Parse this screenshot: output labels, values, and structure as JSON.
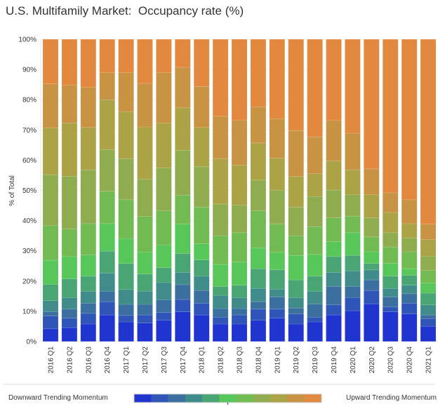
{
  "title": "U.S. Multifamily Market:  Occupancy rate (%)",
  "legend": {
    "left_label": "Downward Trending Momentum",
    "right_label": "Upward Trending Momentum"
  },
  "chart_data": {
    "type": "bar",
    "stacked": true,
    "normalized": true,
    "title": "U.S. Multifamily Market:  Occupancy rate (%)",
    "xlabel": "",
    "ylabel": "% of Total",
    "ylim": [
      0,
      100
    ],
    "yticks": [
      "0%",
      "10%",
      "20%",
      "30%",
      "40%",
      "50%",
      "60%",
      "70%",
      "80%",
      "90%",
      "100%"
    ],
    "grid": true,
    "legend_position": "bottom",
    "band_colors": [
      "#2035d0",
      "#2f55b8",
      "#3b6fa0",
      "#3f8c8a",
      "#4aa574",
      "#57c75a",
      "#72bb52",
      "#8fad4f",
      "#aca347",
      "#c89343",
      "#e3893f"
    ],
    "categories": [
      "2016 Q1",
      "2016 Q2",
      "2016 Q3",
      "2016 Q4",
      "2017 Q1",
      "2017 Q2",
      "2017 Q3",
      "2017 Q4",
      "2018 Q1",
      "2018 Q2",
      "2018 Q3",
      "2018 Q4",
      "2019 Q1",
      "2019 Q2",
      "2019 Q3",
      "2019 Q4",
      "2020 Q1",
      "2020 Q2",
      "2020 Q3",
      "2020 Q4",
      "2021 Q1"
    ],
    "cumulative_band_tops_pct": [
      [
        4.2,
        8.4,
        9.9,
        13.5,
        18.9,
        26.9,
        38.4,
        55.2,
        70.6,
        85.2,
        100
      ],
      [
        4.6,
        7.7,
        10.7,
        14.5,
        20.7,
        28.1,
        37.2,
        54.7,
        72.3,
        84.9,
        100
      ],
      [
        5.8,
        9.3,
        12.7,
        16.6,
        21.6,
        28.6,
        39.0,
        56.8,
        70.8,
        84.1,
        100
      ],
      [
        8.8,
        13.2,
        16.6,
        22.6,
        29.9,
        39.0,
        49.7,
        63.5,
        80.0,
        89.0,
        100
      ],
      [
        6.5,
        8.6,
        12.3,
        17.2,
        25.8,
        34.1,
        46.9,
        60.5,
        76.0,
        89.0,
        100
      ],
      [
        6.1,
        8.8,
        12.3,
        16.6,
        22.3,
        29.6,
        41.4,
        53.7,
        71.0,
        85.4,
        100
      ],
      [
        7.0,
        9.6,
        13.8,
        19.5,
        24.4,
        31.9,
        43.2,
        57.4,
        72.2,
        89.0,
        100
      ],
      [
        9.8,
        13.9,
        18.8,
        22.9,
        29.1,
        38.9,
        48.4,
        63.3,
        77.3,
        90.7,
        100
      ],
      [
        8.8,
        12.7,
        16.9,
        21.6,
        27.0,
        32.3,
        44.5,
        57.8,
        70.8,
        84.4,
        100
      ],
      [
        5.8,
        8.0,
        10.9,
        15.3,
        18.2,
        25.5,
        35.0,
        45.5,
        60.5,
        74.5,
        100
      ],
      [
        5.8,
        8.8,
        10.9,
        14.5,
        18.6,
        26.4,
        36.0,
        45.2,
        58.4,
        73.2,
        100
      ],
      [
        7.0,
        10.7,
        13.2,
        17.6,
        24.1,
        31.0,
        43.2,
        53.4,
        65.7,
        77.6,
        100
      ],
      [
        7.7,
        10.7,
        14.8,
        17.3,
        23.7,
        29.5,
        38.8,
        50.0,
        60.7,
        73.7,
        100
      ],
      [
        5.8,
        9.1,
        11.1,
        14.5,
        20.4,
        28.5,
        35.0,
        44.5,
        54.6,
        69.8,
        100
      ],
      [
        6.5,
        8.0,
        12.4,
        16.6,
        21.6,
        28.8,
        38.0,
        48.0,
        55.5,
        67.7,
        100
      ],
      [
        8.8,
        12.1,
        18.2,
        22.9,
        28.1,
        33.0,
        40.9,
        50.1,
        59.8,
        73.2,
        100
      ],
      [
        10.2,
        14.5,
        18.2,
        23.4,
        28.5,
        36.0,
        41.5,
        48.6,
        56.8,
        68.9,
        100
      ],
      [
        12.4,
        16.9,
        20.4,
        23.7,
        25.8,
        29.7,
        34.6,
        40.9,
        48.6,
        57.1,
        100
      ],
      [
        9.8,
        11.4,
        14.8,
        17.6,
        21.6,
        25.9,
        31.3,
        36.0,
        42.7,
        49.2,
        100
      ],
      [
        9.1,
        12.7,
        15.8,
        18.6,
        21.9,
        24.1,
        29.7,
        34.3,
        39.0,
        46.9,
        100
      ],
      [
        5.0,
        7.6,
        8.8,
        12.1,
        16.0,
        19.3,
        23.5,
        28.2,
        33.7,
        38.8,
        100
      ]
    ]
  }
}
